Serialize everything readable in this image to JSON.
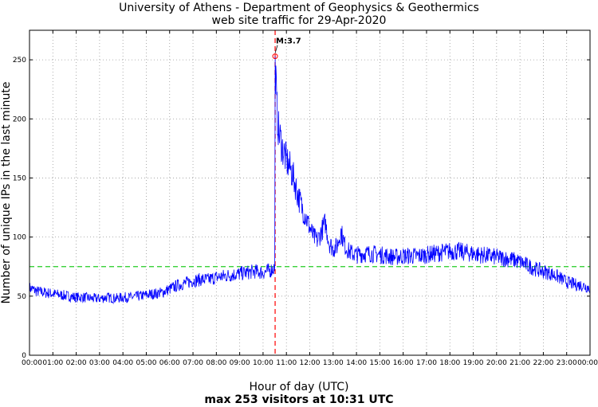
{
  "chart_data": {
    "type": "line",
    "title_lines": [
      "University of Athens - Department of Geophysics & Geothermics",
      "web site traffic for 29-Apr-2020"
    ],
    "xlabel": "Hour of day (UTC)",
    "summary": "max 253 visitors at 10:31 UTC",
    "ylabel": "Number of unique IPs in the last minute",
    "xlim_minutes": [
      0,
      1440
    ],
    "ylim": [
      0,
      275
    ],
    "x_ticks": [
      "00:00",
      "01:00",
      "02:00",
      "03:00",
      "04:00",
      "05:00",
      "06:00",
      "07:00",
      "08:00",
      "09:00",
      "10:00",
      "11:00",
      "12:00",
      "13:00",
      "14:00",
      "15:00",
      "16:00",
      "17:00",
      "18:00",
      "19:00",
      "20:00",
      "21:00",
      "22:00",
      "23:00",
      "00:00"
    ],
    "y_ticks": [
      0,
      50,
      100,
      150,
      200,
      250
    ],
    "grid": true,
    "series": [
      {
        "color": "#0000ff",
        "x_minutes": [
          0,
          20,
          40,
          60,
          80,
          100,
          120,
          140,
          160,
          180,
          200,
          220,
          240,
          260,
          280,
          300,
          320,
          340,
          360,
          380,
          400,
          420,
          440,
          460,
          480,
          500,
          520,
          540,
          560,
          580,
          600,
          620,
          630,
          631,
          635,
          640,
          650,
          660,
          670,
          680,
          690,
          700,
          710,
          720,
          730,
          740,
          750,
          760,
          770,
          780,
          790,
          800,
          810,
          820,
          830,
          840,
          860,
          880,
          900,
          920,
          940,
          960,
          980,
          1000,
          1020,
          1040,
          1060,
          1080,
          1100,
          1120,
          1140,
          1160,
          1180,
          1200,
          1220,
          1240,
          1260,
          1280,
          1300,
          1320,
          1340,
          1360,
          1380,
          1400,
          1420,
          1440
        ],
        "values": [
          57,
          54,
          53,
          52,
          51,
          50,
          49,
          49,
          48,
          48,
          49,
          48,
          49,
          49,
          50,
          51,
          52,
          53,
          56,
          59,
          61,
          63,
          64,
          64,
          66,
          67,
          68,
          69,
          70,
          71,
          70,
          72,
          74,
          253,
          210,
          190,
          175,
          165,
          158,
          148,
          135,
          125,
          117,
          108,
          100,
          97,
          105,
          112,
          95,
          90,
          92,
          105,
          93,
          88,
          86,
          85,
          86,
          86,
          85,
          84,
          83,
          84,
          84,
          84,
          85,
          86,
          87,
          88,
          88,
          87,
          86,
          85,
          84,
          83,
          82,
          81,
          79,
          76,
          73,
          71,
          69,
          66,
          62,
          60,
          59,
          57
        ]
      }
    ],
    "reference_lines": [
      {
        "orientation": "horizontal",
        "value": 75,
        "color": "#22cc22",
        "style": "dashed"
      },
      {
        "orientation": "vertical",
        "value_minutes": 631,
        "color": "#ff0000",
        "style": "dashed"
      }
    ],
    "annotations": [
      {
        "label": "M:3.7",
        "x_minutes": 631,
        "y": 253,
        "marker_color": "#ff0000"
      }
    ]
  }
}
